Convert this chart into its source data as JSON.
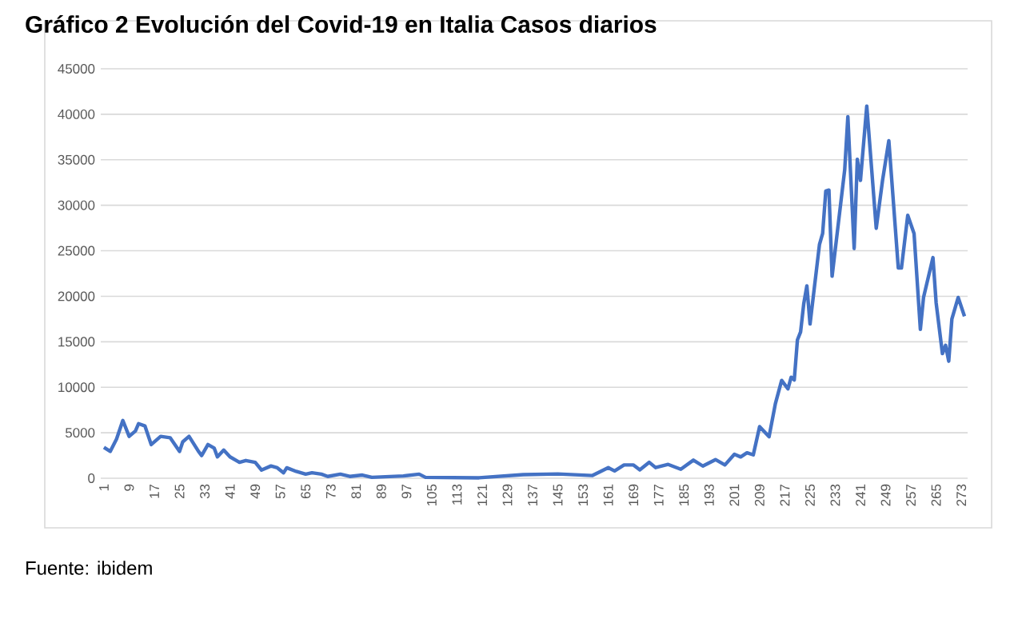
{
  "chart_data": {
    "type": "line",
    "title": "Gráfico 2 Evolución del Covid-19 en Italia Casos diarios",
    "annotations": [
      "Fuente: ibidem"
    ],
    "x": [
      1,
      3,
      5,
      7,
      9,
      11,
      12,
      14,
      16,
      19,
      22,
      25,
      26,
      28,
      31,
      32,
      34,
      36,
      37,
      39,
      41,
      44,
      46,
      49,
      51,
      54,
      56,
      58,
      59,
      62,
      65,
      67,
      70,
      72,
      76,
      79,
      83,
      86,
      96,
      101,
      103,
      120,
      134,
      145,
      156,
      161,
      163,
      166,
      169,
      171,
      174,
      176,
      180,
      184,
      188,
      191,
      195,
      198,
      201,
      203,
      205,
      207,
      209,
      212,
      214,
      216,
      218,
      219,
      220,
      221,
      222,
      223,
      224,
      225,
      228,
      229,
      230,
      231,
      232,
      234,
      236,
      237,
      239,
      240,
      241,
      243,
      246,
      248,
      250,
      253,
      254,
      256,
      258,
      260,
      261,
      264,
      265,
      267,
      268,
      269,
      270,
      272,
      274
    ],
    "series": [
      {
        "color": "#4472c4",
        "values": [
          3400,
          2950,
          4300,
          6350,
          4600,
          5200,
          6000,
          5750,
          3700,
          4600,
          4450,
          2950,
          4000,
          4600,
          2950,
          2500,
          3700,
          3300,
          2350,
          3100,
          2350,
          1750,
          1950,
          1750,
          900,
          1350,
          1150,
          600,
          1150,
          750,
          450,
          600,
          450,
          200,
          450,
          200,
          350,
          100,
          250,
          450,
          100,
          50,
          400,
          470,
          300,
          1170,
          800,
          1460,
          1460,
          930,
          1750,
          1170,
          1520,
          990,
          1990,
          1340,
          2050,
          1460,
          2630,
          2340,
          2800,
          2570,
          5670,
          4560,
          8180,
          10750,
          9820,
          11100,
          10800,
          15200,
          16070,
          19170,
          21150,
          16950,
          25700,
          26900,
          31560,
          31670,
          22200,
          28050,
          33900,
          39740,
          25250,
          35060,
          32730,
          40900,
          27470,
          32730,
          37100,
          23100,
          23100,
          28900,
          26900,
          16360,
          19870,
          24250,
          19300,
          13700,
          14600,
          12860,
          17500,
          19870,
          17800
        ]
      }
    ],
    "xlim": [
      0,
      275
    ],
    "xticks": [
      1,
      9,
      17,
      25,
      33,
      41,
      49,
      57,
      65,
      73,
      81,
      89,
      97,
      105,
      113,
      121,
      129,
      137,
      145,
      153,
      161,
      169,
      177,
      185,
      193,
      201,
      209,
      217,
      225,
      233,
      241,
      249,
      257,
      265,
      273
    ],
    "ylim": [
      0,
      45000
    ],
    "yticks": [
      0,
      5000,
      10000,
      15000,
      20000,
      25000,
      30000,
      35000,
      40000,
      45000
    ],
    "grid": "y",
    "marker": "none",
    "line_style": "solid"
  }
}
